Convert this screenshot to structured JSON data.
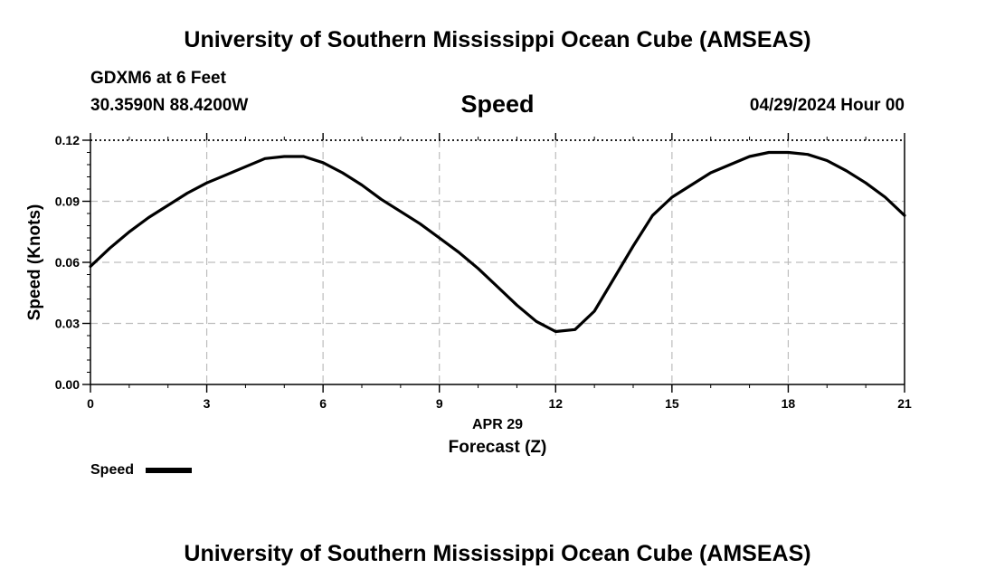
{
  "header": {
    "title": "University of Southern Mississippi Ocean Cube (AMSEAS)",
    "station": "GDXM6 at 6 Feet",
    "coords": "30.3590N  88.4200W",
    "variable": "Speed",
    "timestamp": "04/29/2024 Hour 00"
  },
  "footer": {
    "title": "University of Southern Mississippi Ocean Cube (AMSEAS)"
  },
  "chart_data": {
    "type": "line",
    "title": "Speed",
    "xlabel": "Forecast (Z)",
    "xsublabel": "APR 29",
    "ylabel": "Speed (Knots)",
    "xlim": [
      0,
      21
    ],
    "ylim": [
      0,
      0.12
    ],
    "xticks": [
      0,
      3,
      6,
      9,
      12,
      15,
      18,
      21
    ],
    "xtick_labels": [
      "0",
      "3",
      "6",
      "9",
      "12",
      "15",
      "18",
      "21"
    ],
    "yticks": [
      0,
      0.03,
      0.06,
      0.09,
      0.12
    ],
    "ytick_labels": [
      "0.00",
      "0.03",
      "0.06",
      "0.09",
      "0.12"
    ],
    "grid": true,
    "legend": "bottom-left",
    "series": [
      {
        "name": "Speed",
        "color": "#000000",
        "x": [
          0,
          0.5,
          1,
          1.5,
          2,
          2.5,
          3,
          3.5,
          4,
          4.5,
          5,
          5.5,
          6,
          6.5,
          7,
          7.5,
          8,
          8.5,
          9,
          9.5,
          10,
          10.5,
          11,
          11.5,
          12,
          12.5,
          13,
          13.5,
          14,
          14.5,
          15,
          15.5,
          16,
          16.5,
          17,
          17.5,
          18,
          18.5,
          19,
          19.5,
          20,
          20.5,
          21
        ],
        "values": [
          0.058,
          0.067,
          0.075,
          0.082,
          0.088,
          0.094,
          0.099,
          0.103,
          0.107,
          0.111,
          0.112,
          0.112,
          0.109,
          0.104,
          0.098,
          0.091,
          0.085,
          0.079,
          0.072,
          0.065,
          0.057,
          0.048,
          0.039,
          0.031,
          0.026,
          0.027,
          0.036,
          0.052,
          0.068,
          0.083,
          0.092,
          0.098,
          0.104,
          0.108,
          0.112,
          0.114,
          0.114,
          0.113,
          0.11,
          0.105,
          0.099,
          0.092,
          0.083
        ]
      }
    ]
  }
}
